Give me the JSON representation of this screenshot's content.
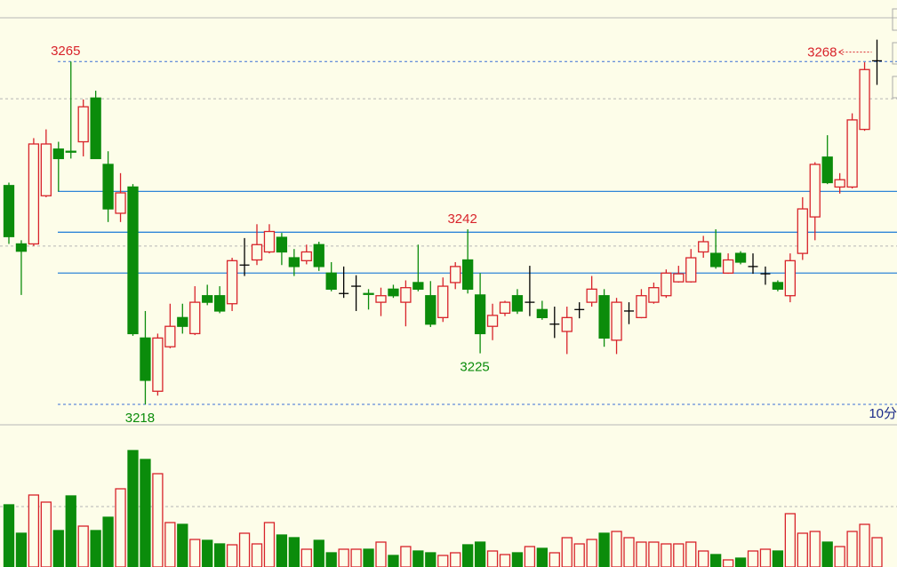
{
  "chart_data": {
    "type": "candlestick",
    "ylim": [
      3215.2,
      3271
    ],
    "up_color": "#d8232a",
    "down_color": "#0b8c0b",
    "doji_color": "#000000",
    "level_color": "#2f86d8",
    "levels": [
      3247.2,
      3241.6,
      3236
    ],
    "grid_levels": [
      3259.9,
      3239.7
    ],
    "high_labels": [
      3265,
      3242,
      3268
    ],
    "low_labels": [
      3218,
      3225
    ],
    "period_label": "10分",
    "open": [
      3248,
      3240,
      3240,
      3246.6,
      3253,
      3252.7,
      3254,
      3260,
      3250.9,
      3244.2,
      3247.8,
      3227.1,
      3219.8,
      3225.9,
      3229.9,
      3227.7,
      3232.9,
      3232.9,
      3231.8,
      3237.1,
      3237.8,
      3238.9,
      3240.9,
      3238.1,
      3237.7,
      3239.9,
      3236,
      3233.2,
      3234.2,
      3233.2,
      3232,
      3233.8,
      3232,
      3234.7,
      3232.9,
      3229.9,
      3234.7,
      3237.8,
      3233,
      3228.7,
      3230.5,
      3232.9,
      3232,
      3231,
      3229,
      3228,
      3231,
      3232,
      3232.9,
      3226.8,
      3230.8,
      3229.9,
      3232,
      3232.9,
      3234.8,
      3234.8,
      3238.9,
      3238.7,
      3236,
      3238.7,
      3236.9,
      3235.9,
      3234.7,
      3232.9,
      3238.7,
      3243.7,
      3251.9,
      3247.8,
      3247.8,
      3255.7,
      3265.1
    ],
    "high": [
      3248.4,
      3240.5,
      3254.5,
      3255.7,
      3254,
      3265,
      3259.8,
      3261,
      3252.7,
      3249.7,
      3248.2,
      3230.8,
      3227.7,
      3231.8,
      3231.8,
      3234.2,
      3234.4,
      3234.2,
      3238.1,
      3240.8,
      3242.7,
      3242.7,
      3241.5,
      3239.3,
      3239.9,
      3240.3,
      3237.5,
      3236.9,
      3235.7,
      3233.8,
      3234,
      3234.4,
      3235,
      3239.9,
      3234.9,
      3235.4,
      3237.5,
      3242,
      3236,
      3231.8,
      3232.2,
      3233.8,
      3237,
      3232.2,
      3231.4,
      3231.4,
      3232,
      3235.6,
      3233.8,
      3232.6,
      3232,
      3233.8,
      3234.7,
      3236.5,
      3237,
      3239.3,
      3241.1,
      3242,
      3238.7,
      3239,
      3238.7,
      3236.9,
      3235,
      3238.7,
      3246.4,
      3251.2,
      3254.9,
      3249.7,
      3257.9,
      3264.9,
      3268
    ],
    "low": [
      3240,
      3233,
      3239.7,
      3246.4,
      3247.2,
      3251.7,
      3252,
      3251.7,
      3243,
      3243,
      3227.4,
      3218,
      3219.2,
      3225.7,
      3227.7,
      3227.5,
      3231.6,
      3230.5,
      3230.8,
      3235.6,
      3237.1,
      3238.7,
      3237.1,
      3235.6,
      3237.2,
      3236.3,
      3233.5,
      3232.6,
      3230.8,
      3231,
      3230.1,
      3232.6,
      3228.7,
      3233.5,
      3228.6,
      3229.3,
      3233.8,
      3233.2,
      3225,
      3226.8,
      3230.1,
      3230.4,
      3230.1,
      3229.6,
      3227.1,
      3224.9,
      3229.8,
      3231.4,
      3225.9,
      3224.9,
      3229,
      3229.8,
      3231.8,
      3232.6,
      3234.7,
      3234.7,
      3238.1,
      3236.6,
      3235.9,
      3237.2,
      3235.9,
      3234.4,
      3233.5,
      3232,
      3237.8,
      3240.5,
      3248.2,
      3246.9,
      3247.6,
      3255.5,
      3261.8
    ],
    "close": [
      3241,
      3239,
      3253.7,
      3253.7,
      3251.7,
      3252.6,
      3258.8,
      3251.7,
      3244.8,
      3247,
      3227.7,
      3221.3,
      3227.1,
      3228.7,
      3228.7,
      3232,
      3232,
      3230.8,
      3237.7,
      3237.1,
      3239.9,
      3241.7,
      3238.9,
      3236.9,
      3238.9,
      3236.9,
      3233.8,
      3233.2,
      3234.2,
      3233.1,
      3232.9,
      3232.9,
      3234,
      3233.8,
      3229,
      3234.2,
      3236.9,
      3233.8,
      3227.7,
      3230.2,
      3232,
      3230.8,
      3232,
      3229.9,
      3229,
      3229.9,
      3231,
      3233.8,
      3227.1,
      3232,
      3230.8,
      3232.9,
      3234,
      3236,
      3235.9,
      3238.1,
      3240.3,
      3236.9,
      3237.8,
      3237.5,
      3236.9,
      3235.9,
      3233.8,
      3237.7,
      3244.8,
      3250.9,
      3248.4,
      3248.8,
      3257,
      3263.9,
      3265.1
    ],
    "volume_ylim": [
      0,
      158
    ],
    "volume_grid_levels": [
      68
    ],
    "volume": [
      70,
      38,
      81,
      73,
      41,
      80,
      46,
      41,
      56,
      88,
      131,
      121,
      105,
      50,
      48,
      31,
      30,
      26,
      25,
      38,
      26,
      50,
      36,
      33,
      20,
      30,
      16,
      20,
      20,
      20,
      28,
      13,
      23,
      18,
      16,
      13,
      16,
      25,
      28,
      18,
      14,
      16,
      23,
      21,
      16,
      33,
      26,
      31,
      38,
      40,
      33,
      28,
      28,
      26,
      26,
      28,
      18,
      14,
      8,
      10,
      18,
      20,
      18,
      60,
      38,
      40,
      28,
      23,
      40,
      48,
      33
    ]
  }
}
